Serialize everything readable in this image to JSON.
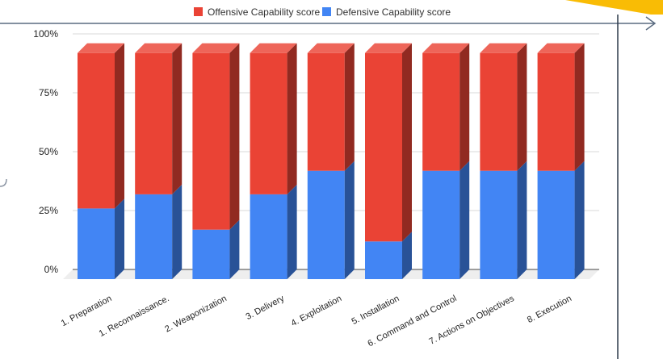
{
  "legend": {
    "offense_label": "Offensive Capability score",
    "defense_label": "Defensive Capability score"
  },
  "colors": {
    "offense": "#ea4335",
    "defense": "#4285f4",
    "accent": "#f9bc05"
  },
  "chart_data": {
    "type": "bar",
    "stacked": true,
    "percent_stacked": true,
    "three_d": true,
    "categories": [
      "1. Preparation",
      "1. Reconnaissance.",
      "2. Weaponization",
      "3. Delivery",
      "4. Exploitation",
      "5. Installation",
      "6. Command and Control",
      "7. Actions on Objectives",
      "8. Execution"
    ],
    "series": [
      {
        "name": "Defensive Capability score",
        "values": [
          30,
          36,
          21,
          36,
          46,
          16,
          46,
          46,
          46
        ]
      },
      {
        "name": "Offensive Capability score",
        "values": [
          66,
          60,
          75,
          60,
          50,
          80,
          50,
          50,
          50
        ]
      }
    ],
    "ylim": [
      0,
      100
    ],
    "yticks": [
      "0%",
      "25%",
      "50%",
      "75%",
      "100%"
    ],
    "grid": true,
    "legend_position": "top"
  }
}
